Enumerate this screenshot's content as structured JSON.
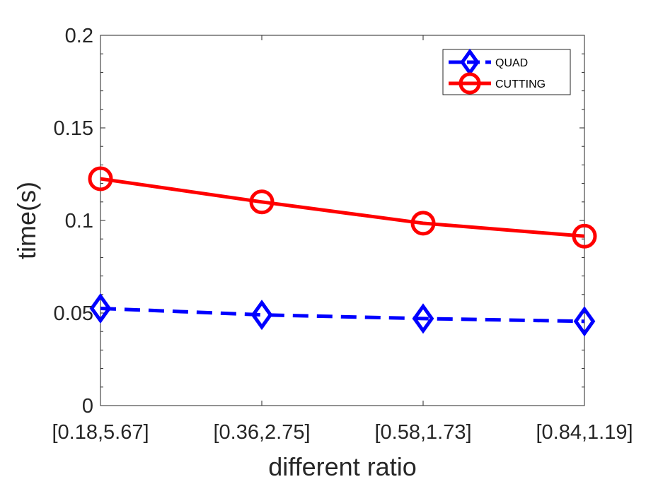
{
  "chart_data": {
    "type": "line",
    "title": "",
    "xlabel": "different ratio",
    "ylabel": "time(s)",
    "categories": [
      "[0.18,5.67]",
      "[0.36,2.75]",
      "[0.58,1.73]",
      "[0.84,1.19]"
    ],
    "ylim": [
      0,
      0.2
    ],
    "yticks": [
      "0",
      "0.05",
      "0.1",
      "0.15",
      "0.2"
    ],
    "yticks_values": [
      0,
      0.05,
      0.1,
      0.15,
      0.2
    ],
    "grid": false,
    "legend_position": "top-right",
    "series": [
      {
        "name": "QUAD",
        "values": [
          0.0525,
          0.049,
          0.047,
          0.0455
        ],
        "color": "#0000ff",
        "line_style": "dashed",
        "marker": "diamond"
      },
      {
        "name": "CUTTING",
        "values": [
          0.1225,
          0.11,
          0.0985,
          0.0915
        ],
        "color": "#ff0000",
        "line_style": "solid",
        "marker": "circle"
      }
    ]
  }
}
